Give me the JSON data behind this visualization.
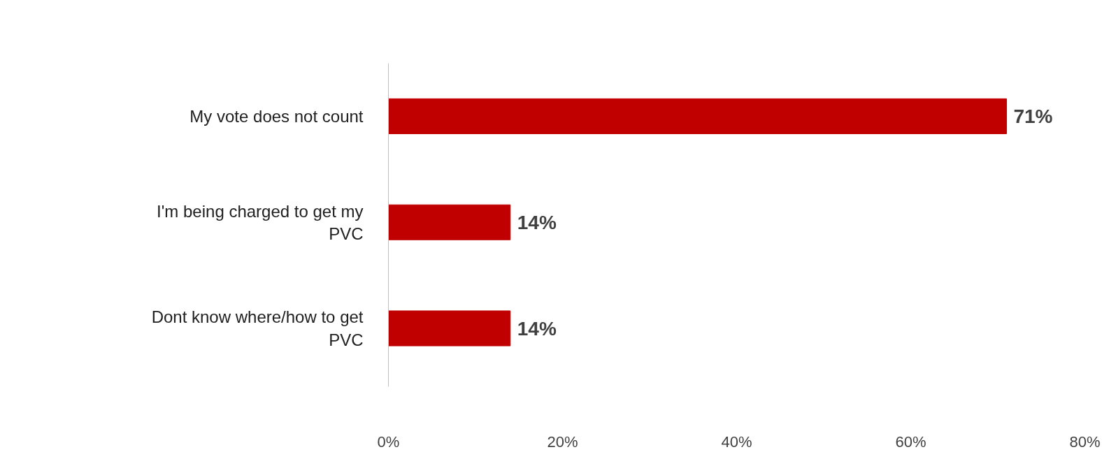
{
  "chart_data": {
    "type": "bar",
    "orientation": "horizontal",
    "categories": [
      "My vote does not count",
      "I'm being charged to get my PVC",
      "Dont know where/how to get PVC"
    ],
    "values": [
      71,
      14,
      14
    ],
    "color": "#c00000",
    "value_labels": [
      "71%",
      "14%",
      "14%"
    ],
    "xlim": [
      0,
      80
    ],
    "xticks": [
      {
        "value": 0,
        "label": "0%"
      },
      {
        "value": 20,
        "label": "20%"
      },
      {
        "value": 40,
        "label": "40%"
      },
      {
        "value": 60,
        "label": "60%"
      },
      {
        "value": 80,
        "label": "80%"
      }
    ],
    "grid": false
  }
}
